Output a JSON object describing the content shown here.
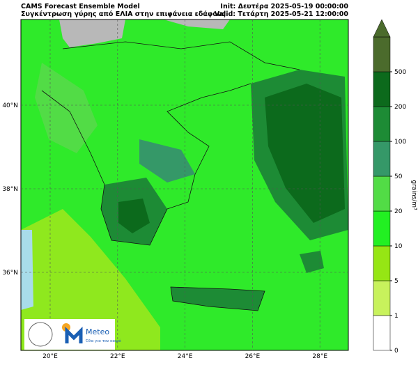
{
  "header": {
    "model": "CAMS Forecast Ensemble Model",
    "subtitle": "Συγκέντρωση γύρης από ΕΛΙΑ στην επιφάνεια εδάφους",
    "init": "Init: Δευτέρα 2025-05-19 00:00:00",
    "valid": "Valid: Τετάρτη 2025-05-21 12:00:00"
  },
  "map": {
    "lon_labels": [
      "20°E",
      "22°E",
      "24°E",
      "26°E",
      "28°E"
    ],
    "lat_labels": [
      "40°N",
      "38°N",
      "36°N"
    ]
  },
  "colorbar": {
    "unit": "grains/m³",
    "levels": [
      "0",
      "1",
      "5",
      "10",
      "20",
      "50",
      "100",
      "200",
      "500"
    ],
    "colors": [
      "#ffffff",
      "#c8f25c",
      "#96e614",
      "#22f022",
      "#52dc46",
      "#359868",
      "#1d8b35",
      "#0c6a1c",
      "#4b6b2c"
    ]
  },
  "logo": {
    "name": "Meteo",
    "tagline": "Όλα για τον καιρό"
  }
}
